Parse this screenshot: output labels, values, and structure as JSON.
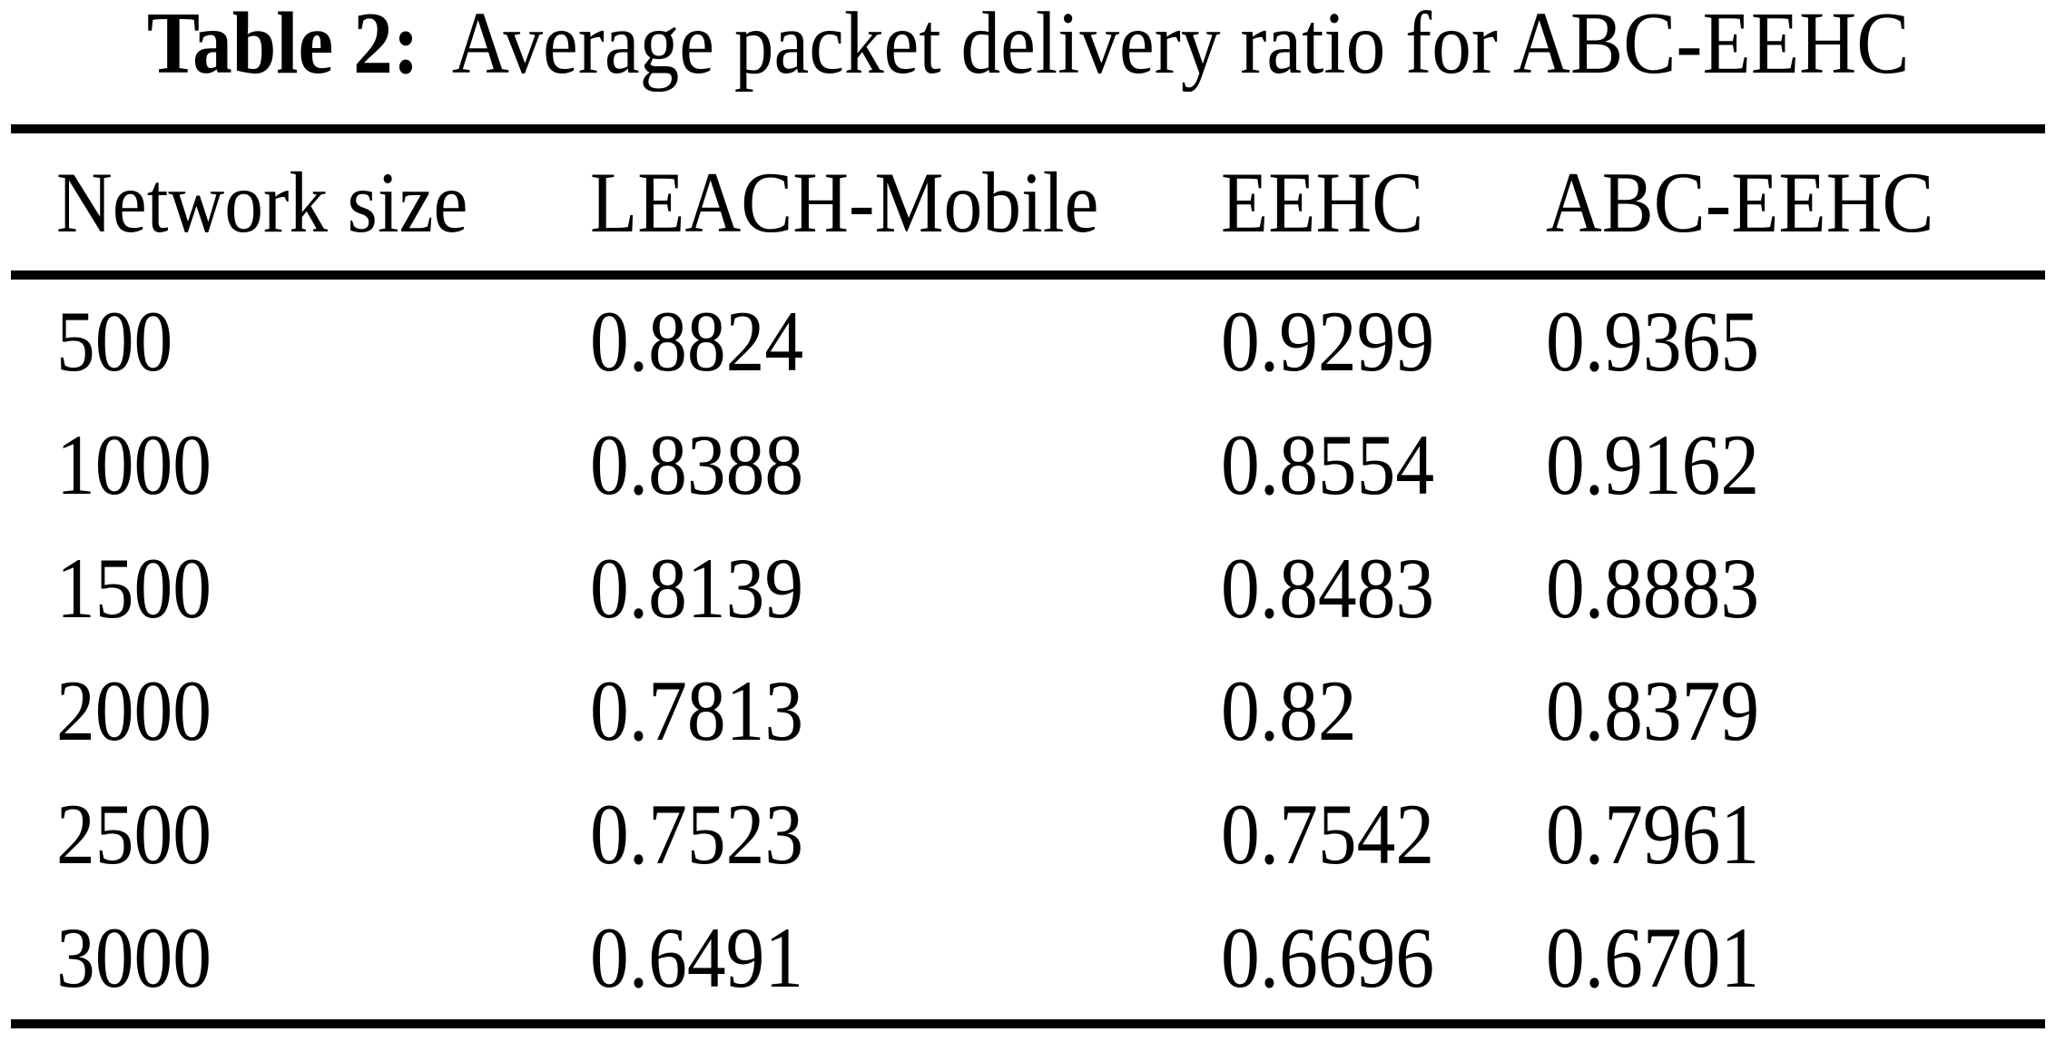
{
  "page": {
    "background": "#ffffff",
    "text_color": "#000000",
    "rule_color": "#000000"
  },
  "caption": {
    "label": "Table 2:",
    "text": "Average packet delivery ratio for ABC-EEHC"
  },
  "table": {
    "columns": [
      "Network size",
      "LEACH-Mobile",
      "EEHC",
      "ABC-EEHC"
    ],
    "rows": [
      [
        "500",
        "0.8824",
        "0.9299",
        "0.9365"
      ],
      [
        "1000",
        "0.8388",
        "0.8554",
        "0.9162"
      ],
      [
        "1500",
        "0.8139",
        "0.8483",
        "0.8883"
      ],
      [
        "2000",
        "0.7813",
        "0.82",
        "0.8379"
      ],
      [
        "2500",
        "0.7523",
        "0.7542",
        "0.7961"
      ],
      [
        "3000",
        "0.6491",
        "0.6696",
        "0.6701"
      ]
    ]
  },
  "chart_data": {
    "type": "table",
    "title": "Table 2: Average packet delivery ratio for ABC-EEHC",
    "columns": [
      "Network size",
      "LEACH-Mobile",
      "EEHC",
      "ABC-EEHC"
    ],
    "categories": [
      500,
      1000,
      1500,
      2000,
      2500,
      3000
    ],
    "series": [
      {
        "name": "LEACH-Mobile",
        "values": [
          0.8824,
          0.8388,
          0.8139,
          0.7813,
          0.7523,
          0.6491
        ]
      },
      {
        "name": "EEHC",
        "values": [
          0.9299,
          0.8554,
          0.8483,
          0.82,
          0.7542,
          0.6696
        ]
      },
      {
        "name": "ABC-EEHC",
        "values": [
          0.9365,
          0.9162,
          0.8883,
          0.8379,
          0.7961,
          0.6701
        ]
      }
    ]
  }
}
